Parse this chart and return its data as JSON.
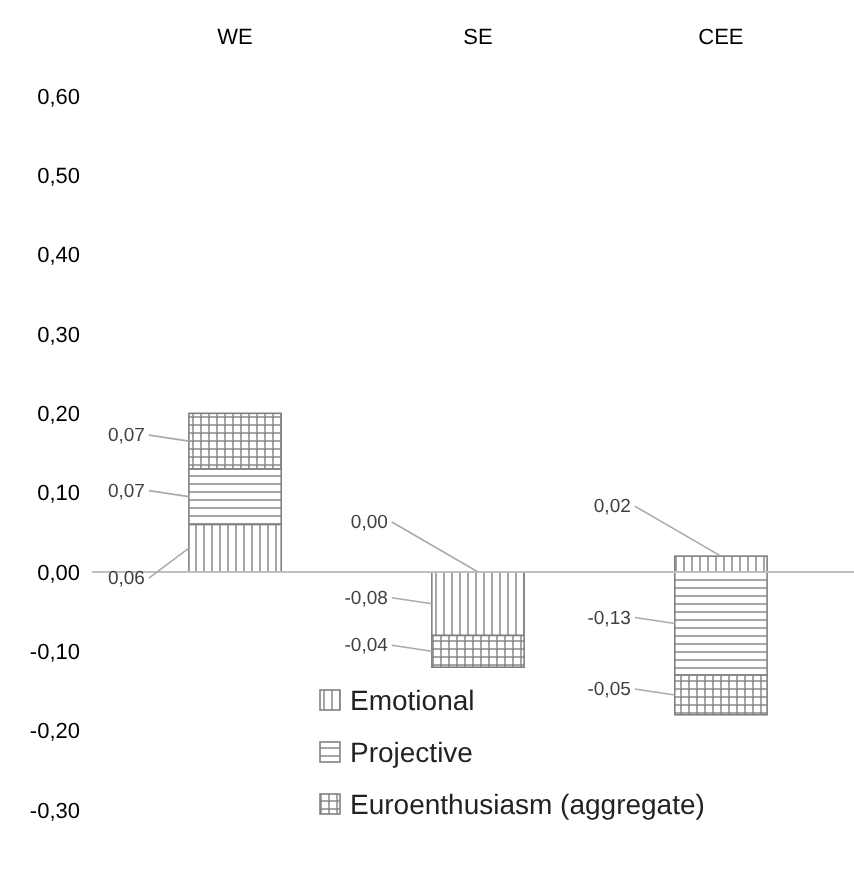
{
  "chart_data": {
    "type": "bar",
    "stacked": true,
    "categories": [
      "WE",
      "SE",
      "CEE"
    ],
    "series": [
      {
        "name": "Emotional",
        "color": "#808080",
        "values": [
          0.06,
          -0.08,
          0.02
        ],
        "value_labels": [
          "0,06",
          "-0,08",
          "0,02"
        ]
      },
      {
        "name": "Projective",
        "color": "#808080",
        "values": [
          0.07,
          0.0,
          -0.13
        ],
        "value_labels": [
          "0,07",
          "0,00",
          "-0,13"
        ]
      },
      {
        "name": "Euroenthusiasm (aggregate)",
        "color": "#808080",
        "values": [
          0.07,
          -0.04,
          -0.05
        ],
        "value_labels": [
          "0,07",
          "-0,04",
          "-0,05"
        ]
      }
    ],
    "ylim": [
      -0.3,
      0.6
    ],
    "yticks": [
      {
        "value": -0.3,
        "label": "-0,30"
      },
      {
        "value": -0.2,
        "label": "-0,20"
      },
      {
        "value": -0.1,
        "label": "-0,10"
      },
      {
        "value": 0,
        "label": "0,00"
      },
      {
        "value": 0.1,
        "label": "0,10"
      },
      {
        "value": 0.2,
        "label": "0,20"
      },
      {
        "value": 0.3,
        "label": "0,30"
      },
      {
        "value": 0.4,
        "label": "0,40"
      },
      {
        "value": 0.5,
        "label": "0,50"
      },
      {
        "value": 0.6,
        "label": "0,60"
      }
    ],
    "legend": "bottom"
  }
}
